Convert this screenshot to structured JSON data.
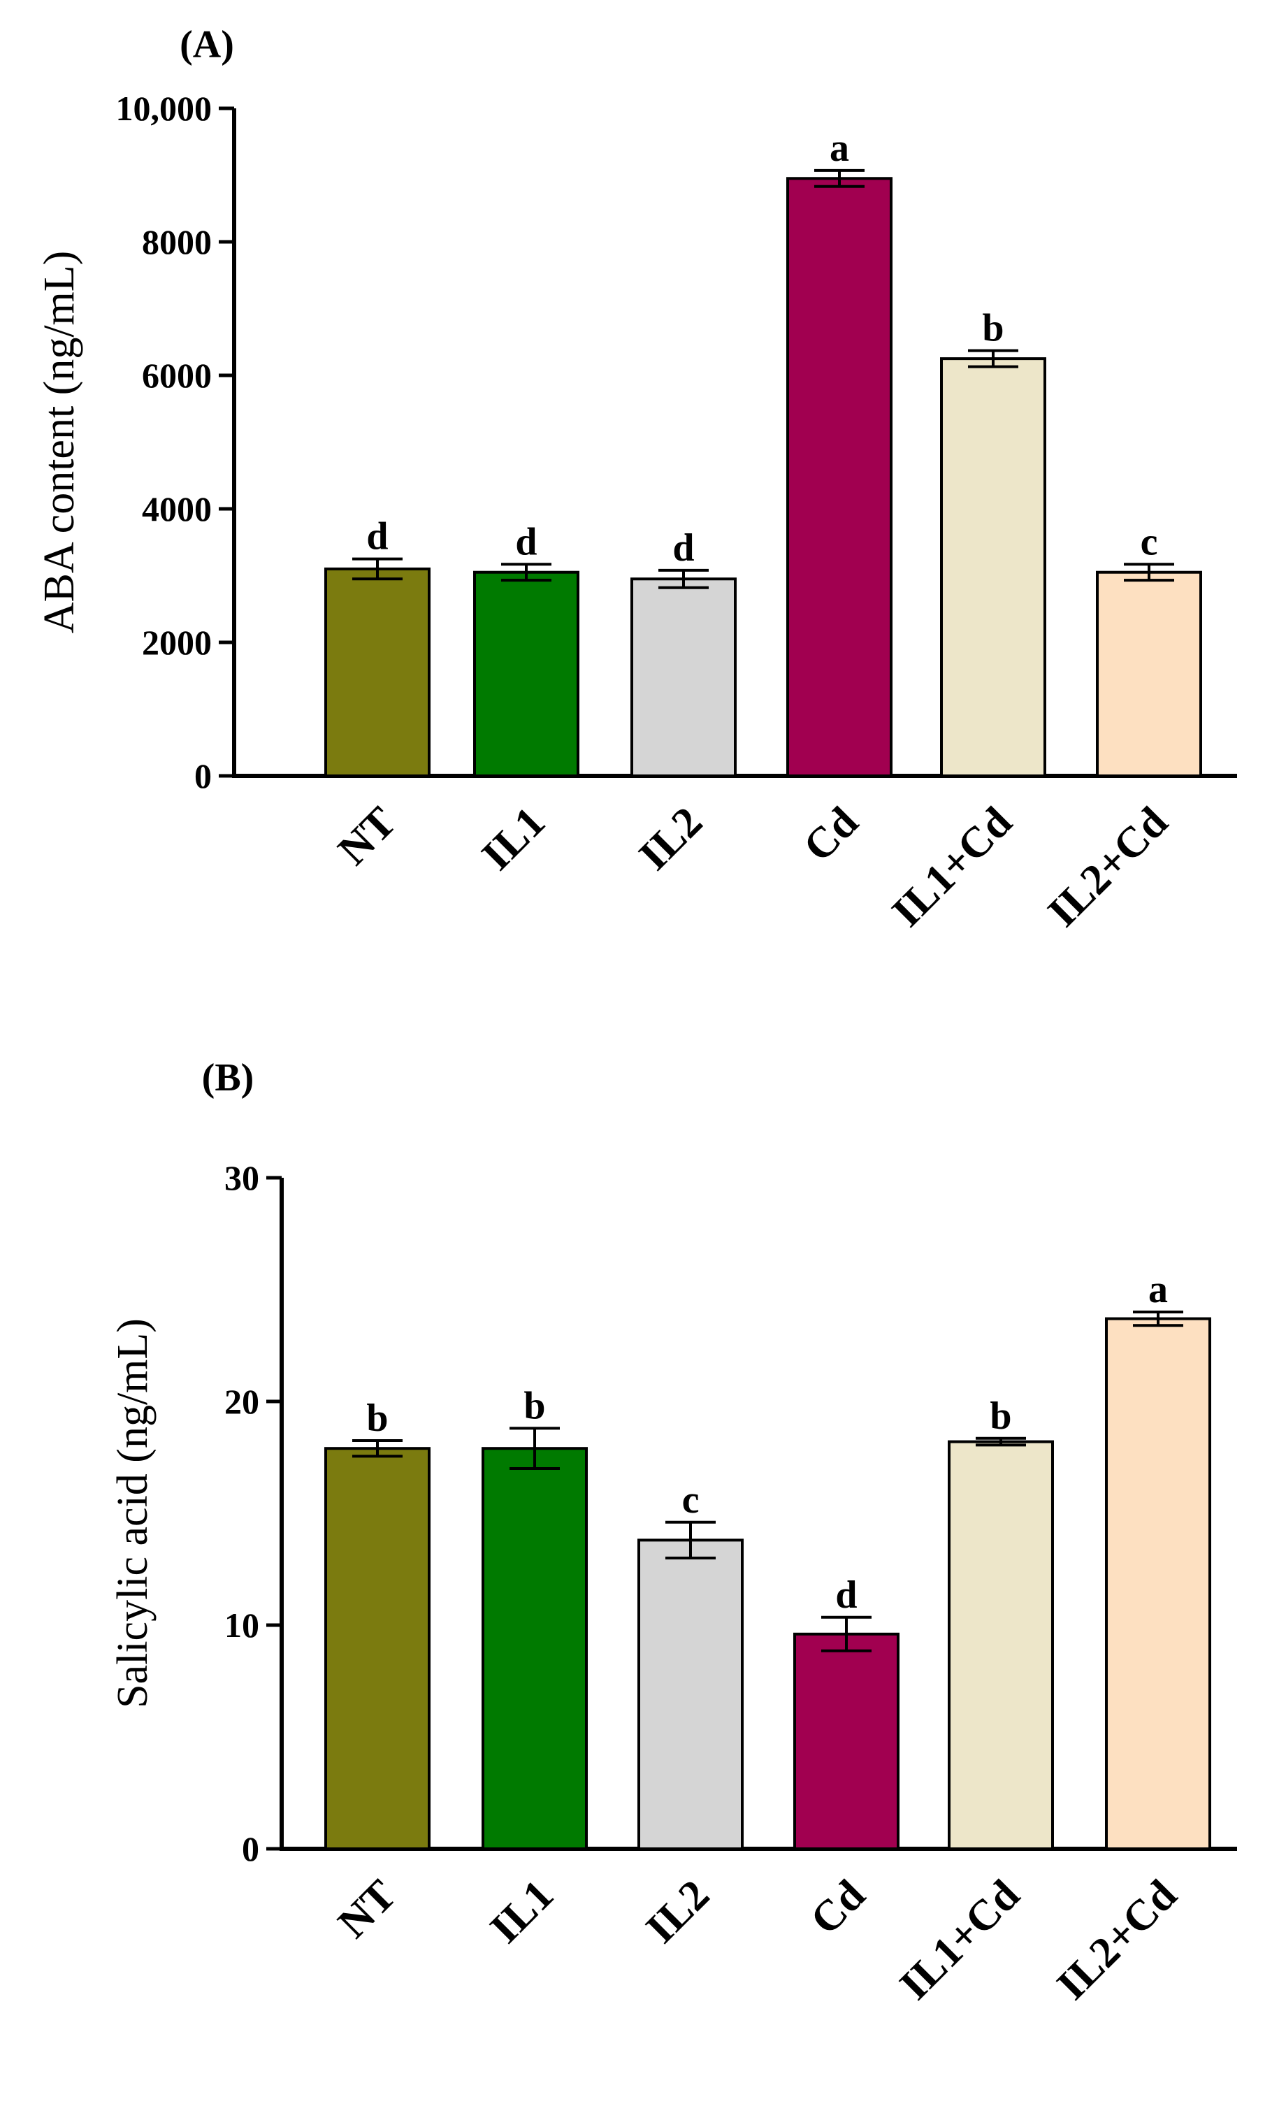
{
  "chart_data": [
    {
      "type": "bar",
      "panel_label": "(A)",
      "title": "",
      "xlabel": "",
      "ylabel": "ABA content (ng/mL)",
      "ylim": [
        0,
        10000
      ],
      "yticks": [
        0,
        2000,
        4000,
        6000,
        8000,
        10000
      ],
      "ytick_labels": [
        "0",
        "2000",
        "4000",
        "6000",
        "8000",
        "10,000"
      ],
      "categories": [
        "NT",
        "IL1",
        "IL2",
        "Cd",
        "IL1+Cd",
        "IL2+Cd"
      ],
      "values": [
        3100,
        3050,
        2950,
        8950,
        6250,
        3050
      ],
      "errors": [
        150,
        120,
        130,
        120,
        120,
        120
      ],
      "letters": [
        "d",
        "d",
        "d",
        "a",
        "b",
        "c"
      ],
      "colors": [
        "#7b7b0f",
        "#007a00",
        "#d5d5d5",
        "#a10050",
        "#ede6c9",
        "#fde0c1"
      ]
    },
    {
      "type": "bar",
      "panel_label": "(B)",
      "title": "",
      "xlabel": "",
      "ylabel": "Salicylic acid (ng/mL)",
      "ylim": [
        0,
        30
      ],
      "yticks": [
        0,
        10,
        20,
        30
      ],
      "ytick_labels": [
        "0",
        "10",
        "20",
        "30"
      ],
      "categories": [
        "NT",
        "IL1",
        "IL2",
        "Cd",
        "IL1+Cd",
        "IL2+Cd"
      ],
      "values": [
        17.9,
        17.9,
        13.8,
        9.6,
        18.2,
        23.7
      ],
      "errors": [
        0.35,
        0.9,
        0.8,
        0.75,
        0.15,
        0.3
      ],
      "letters": [
        "b",
        "b",
        "c",
        "d",
        "b",
        "a"
      ],
      "colors": [
        "#7b7b0f",
        "#007a00",
        "#d5d5d5",
        "#a10050",
        "#ede6c9",
        "#fde0c1"
      ]
    }
  ]
}
